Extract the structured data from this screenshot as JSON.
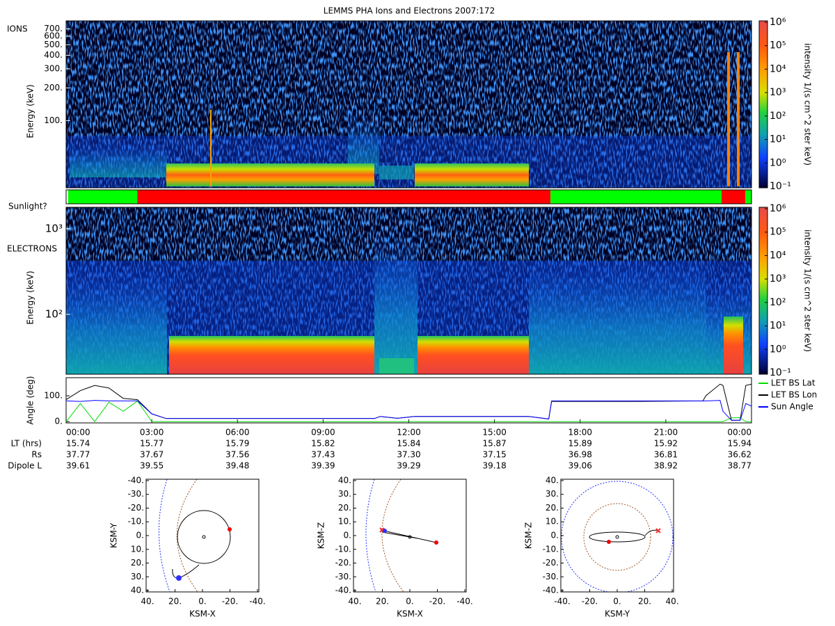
{
  "title": "LEMMS PHA Ions and Electrons  2007:172",
  "chart_data": [
    {
      "type": "spectrogram",
      "panel_label": "IONS",
      "y_label": "Energy (keV)",
      "log_scale": true,
      "ylim": [
        24,
        830
      ],
      "yticks": [
        {
          "value": 100,
          "label": "100."
        },
        {
          "value": 200,
          "label": "200."
        },
        {
          "value": 300,
          "label": "300."
        },
        {
          "value": 400,
          "label": "400."
        },
        {
          "value": 500,
          "label": "500."
        },
        {
          "value": 600,
          "label": "600."
        },
        {
          "value": 700,
          "label": "700."
        }
      ],
      "colorbar_label": "intensity 1/(s cm^2 ster keV)",
      "clim": [
        0.1,
        1000000
      ],
      "cticks": [
        {
          "value": 1000000,
          "label": "10⁶"
        },
        {
          "value": 100000,
          "label": "10⁵"
        },
        {
          "value": 10000,
          "label": "10⁴"
        },
        {
          "value": 1000,
          "label": "10³"
        },
        {
          "value": 100,
          "label": "10²"
        },
        {
          "value": 10,
          "label": "10¹"
        },
        {
          "value": 1,
          "label": "10⁰"
        },
        {
          "value": 0.1,
          "label": "10⁻¹"
        }
      ]
    },
    {
      "type": "strip",
      "label": "Sunlight?",
      "xlim": [
        0,
        24
      ],
      "starts": [
        0.07,
        2.49,
        16.96,
        22.95,
        23.78
      ],
      "ends": [
        2.49,
        16.96,
        22.95,
        23.78,
        24
      ],
      "colors": [
        "#00ff00",
        "#ff0000",
        "#00ff00",
        "#ff0000",
        "#00ff00"
      ]
    },
    {
      "type": "spectrogram",
      "panel_label": "ELECTRONS",
      "y_label": "Energy (keV)",
      "log_scale": true,
      "ylim": [
        20,
        1780
      ],
      "yticks": [
        {
          "value": 100,
          "label": "10²"
        },
        {
          "value": 1000,
          "label": "10³"
        }
      ],
      "colorbar_label": "intensity 1/(s cm^2 ster keV)",
      "clim": [
        0.1,
        1000000
      ],
      "cticks": [
        {
          "value": 1000000,
          "label": "10⁶"
        },
        {
          "value": 100000,
          "label": "10⁵"
        },
        {
          "value": 10000,
          "label": "10⁴"
        },
        {
          "value": 1000,
          "label": "10³"
        },
        {
          "value": 100,
          "label": "10²"
        },
        {
          "value": 10,
          "label": "10¹"
        },
        {
          "value": 1,
          "label": "10⁰"
        },
        {
          "value": 0.1,
          "label": "10⁻¹"
        }
      ]
    },
    {
      "type": "line",
      "y_label": "Angle (deg)",
      "legend": "right",
      "xlim": [
        0,
        24
      ],
      "xticks": [
        {
          "value": 0,
          "label": "00:00"
        },
        {
          "value": 3,
          "label": "03:00"
        },
        {
          "value": 6,
          "label": "06:00"
        },
        {
          "value": 9,
          "label": "09:00"
        },
        {
          "value": 12,
          "label": "12:00"
        },
        {
          "value": 15,
          "label": "15:00"
        },
        {
          "value": 18,
          "label": "18:00"
        },
        {
          "value": 21,
          "label": "21:00"
        },
        {
          "value": 24,
          "label": "00:00"
        }
      ],
      "ylim": [
        -5,
        170
      ],
      "yticks": [
        {
          "value": 0,
          "label": "0."
        },
        {
          "value": 100,
          "label": "100."
        }
      ],
      "x": [
        0,
        0.5,
        1,
        1.5,
        2,
        2.5,
        3,
        3.5,
        6,
        9,
        10.8,
        11,
        11.6,
        12.2,
        12.5,
        16.2,
        16.9,
        17,
        20,
        22.3,
        22.4,
        22.9,
        23,
        23.3,
        23.6,
        23.8,
        24
      ],
      "series": [
        {
          "name": "LET BS Lat",
          "color": "#00dd00",
          "values": [
            0,
            70,
            0,
            75,
            40,
            80,
            0,
            0,
            0,
            0,
            0,
            0,
            0,
            0,
            0,
            0,
            0,
            0,
            0,
            0,
            0,
            0,
            0,
            15,
            15,
            0,
            0
          ]
        },
        {
          "name": "LET BS Lon",
          "color": "#000000",
          "values": [
            85,
            120,
            140,
            130,
            90,
            85,
            30,
            12,
            12,
            12,
            12,
            20,
            13,
            20,
            20,
            20,
            10,
            78,
            78,
            80,
            100,
            145,
            140,
            5,
            5,
            140,
            145
          ]
        },
        {
          "name": "Sun Angle",
          "color": "#0000ff",
          "values": [
            80,
            78,
            82,
            80,
            80,
            80,
            30,
            12,
            12,
            12,
            12,
            20,
            13,
            20,
            20,
            20,
            10,
            80,
            80,
            80,
            80,
            82,
            40,
            5,
            5,
            70,
            60
          ]
        }
      ]
    },
    {
      "type": "orbit",
      "x_label": "KSM-X",
      "y_label": "KSM-Y",
      "xlim": [
        41,
        -41
      ],
      "ylim": [
        41,
        -41
      ],
      "xticks": [
        {
          "value": 40,
          "label": "40."
        },
        {
          "value": 20,
          "label": "20."
        },
        {
          "value": 0,
          "label": "0."
        },
        {
          "value": -20,
          "label": "-20."
        },
        {
          "value": -40,
          "label": "-40."
        }
      ],
      "yticks": [
        {
          "value": -40,
          "label": "-40."
        },
        {
          "value": -30,
          "label": "-30."
        },
        {
          "value": -20,
          "label": "-20."
        },
        {
          "value": -10,
          "label": "-10."
        },
        {
          "value": 0,
          "label": "0."
        },
        {
          "value": 10,
          "label": "10."
        },
        {
          "value": 20,
          "label": "20."
        },
        {
          "value": 30,
          "label": "30."
        },
        {
          "value": 40,
          "label": "40."
        }
      ]
    },
    {
      "type": "orbit",
      "x_label": "KSM-X",
      "y_label": "KSM-Z",
      "xlim": [
        41,
        -41
      ],
      "ylim": [
        -41,
        41
      ],
      "xticks": [
        {
          "value": 40,
          "label": "40."
        },
        {
          "value": 20,
          "label": "20."
        },
        {
          "value": 0,
          "label": "0."
        },
        {
          "value": -20,
          "label": "-20."
        },
        {
          "value": -40,
          "label": "-40."
        }
      ],
      "yticks": [
        {
          "value": 40,
          "label": "40."
        },
        {
          "value": 30,
          "label": "30."
        },
        {
          "value": 20,
          "label": "20."
        },
        {
          "value": 10,
          "label": "10."
        },
        {
          "value": 0,
          "label": "0."
        },
        {
          "value": -10,
          "label": "-10."
        },
        {
          "value": -20,
          "label": "-20."
        },
        {
          "value": -30,
          "label": "-30."
        },
        {
          "value": -40,
          "label": "-40."
        }
      ]
    },
    {
      "type": "orbit",
      "x_label": "KSM-Y",
      "y_label": "KSM-Z",
      "xlim": [
        -41,
        41
      ],
      "ylim": [
        -41,
        41
      ],
      "xticks": [
        {
          "value": -40,
          "label": "-40."
        },
        {
          "value": -20,
          "label": "-20."
        },
        {
          "value": 0,
          "label": "0."
        },
        {
          "value": 20,
          "label": "20."
        },
        {
          "value": 40,
          "label": "40."
        }
      ],
      "yticks": [
        {
          "value": 40,
          "label": "40."
        },
        {
          "value": 30,
          "label": "30."
        },
        {
          "value": 20,
          "label": "20."
        },
        {
          "value": 10,
          "label": "10."
        },
        {
          "value": 0,
          "label": "0."
        },
        {
          "value": -10,
          "label": "-10."
        },
        {
          "value": -20,
          "label": "-20."
        },
        {
          "value": -30,
          "label": "-30."
        },
        {
          "value": -40,
          "label": "-40."
        }
      ]
    }
  ],
  "ephemeris": {
    "rows": [
      {
        "label": "LT (hrs)",
        "values": [
          "15.74",
          "15.77",
          "15.79",
          "15.82",
          "15.84",
          "15.87",
          "15.89",
          "15.92",
          "15.94"
        ]
      },
      {
        "label": "Rs",
        "values": [
          "37.77",
          "37.67",
          "37.56",
          "37.43",
          "37.30",
          "37.15",
          "36.98",
          "36.81",
          "36.62"
        ]
      },
      {
        "label": "Dipole L",
        "values": [
          "39.61",
          "39.55",
          "39.48",
          "39.39",
          "39.29",
          "39.18",
          "39.06",
          "38.92",
          "38.77"
        ]
      }
    ]
  }
}
